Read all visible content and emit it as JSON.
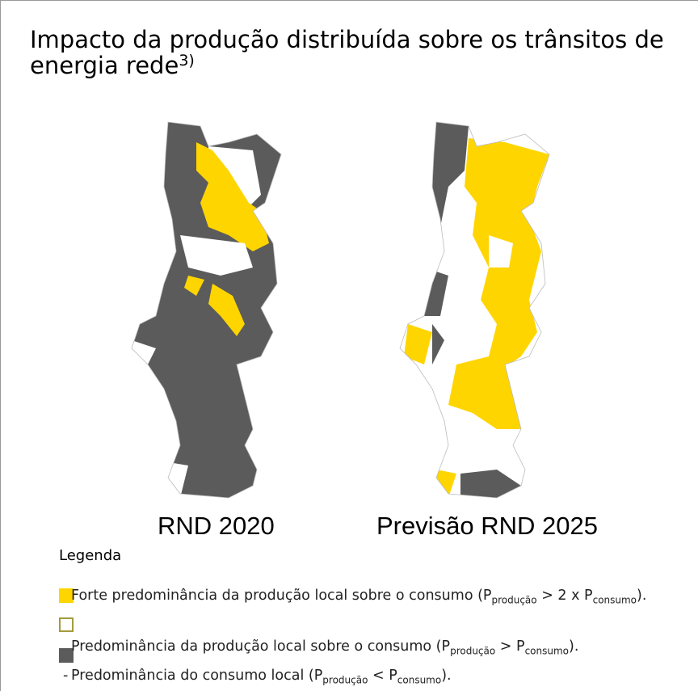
{
  "title": "Impacto da produção distribuída sobre os trânsitos de energia rede",
  "title_note": "3)",
  "maps": [
    {
      "label": "RND 2020"
    },
    {
      "label": "Previsão RND 2025"
    }
  ],
  "legend": {
    "heading": "Legenda",
    "items": [
      {
        "segments": [
          {
            "text": "Forte predominância da produção local sobre o consumo (P"
          },
          {
            "subscript": "produção"
          },
          {
            "text": " > 2 x P"
          },
          {
            "subscript": "consumo"
          },
          {
            "text": ")."
          }
        ]
      },
      {
        "segments": [
          {
            "text": "Predominância da produção local sobre o consumo (P"
          },
          {
            "subscript": "produção"
          },
          {
            "text": " > P"
          },
          {
            "subscript": "consumo"
          },
          {
            "text": ")."
          }
        ]
      },
      {
        "marker": "-",
        "segments": [
          {
            "text": "Predominância do consumo local (P"
          },
          {
            "subscript": "produção"
          },
          {
            "text": " < P"
          },
          {
            "subscript": "consumo"
          },
          {
            "text": ")."
          }
        ]
      }
    ]
  }
}
